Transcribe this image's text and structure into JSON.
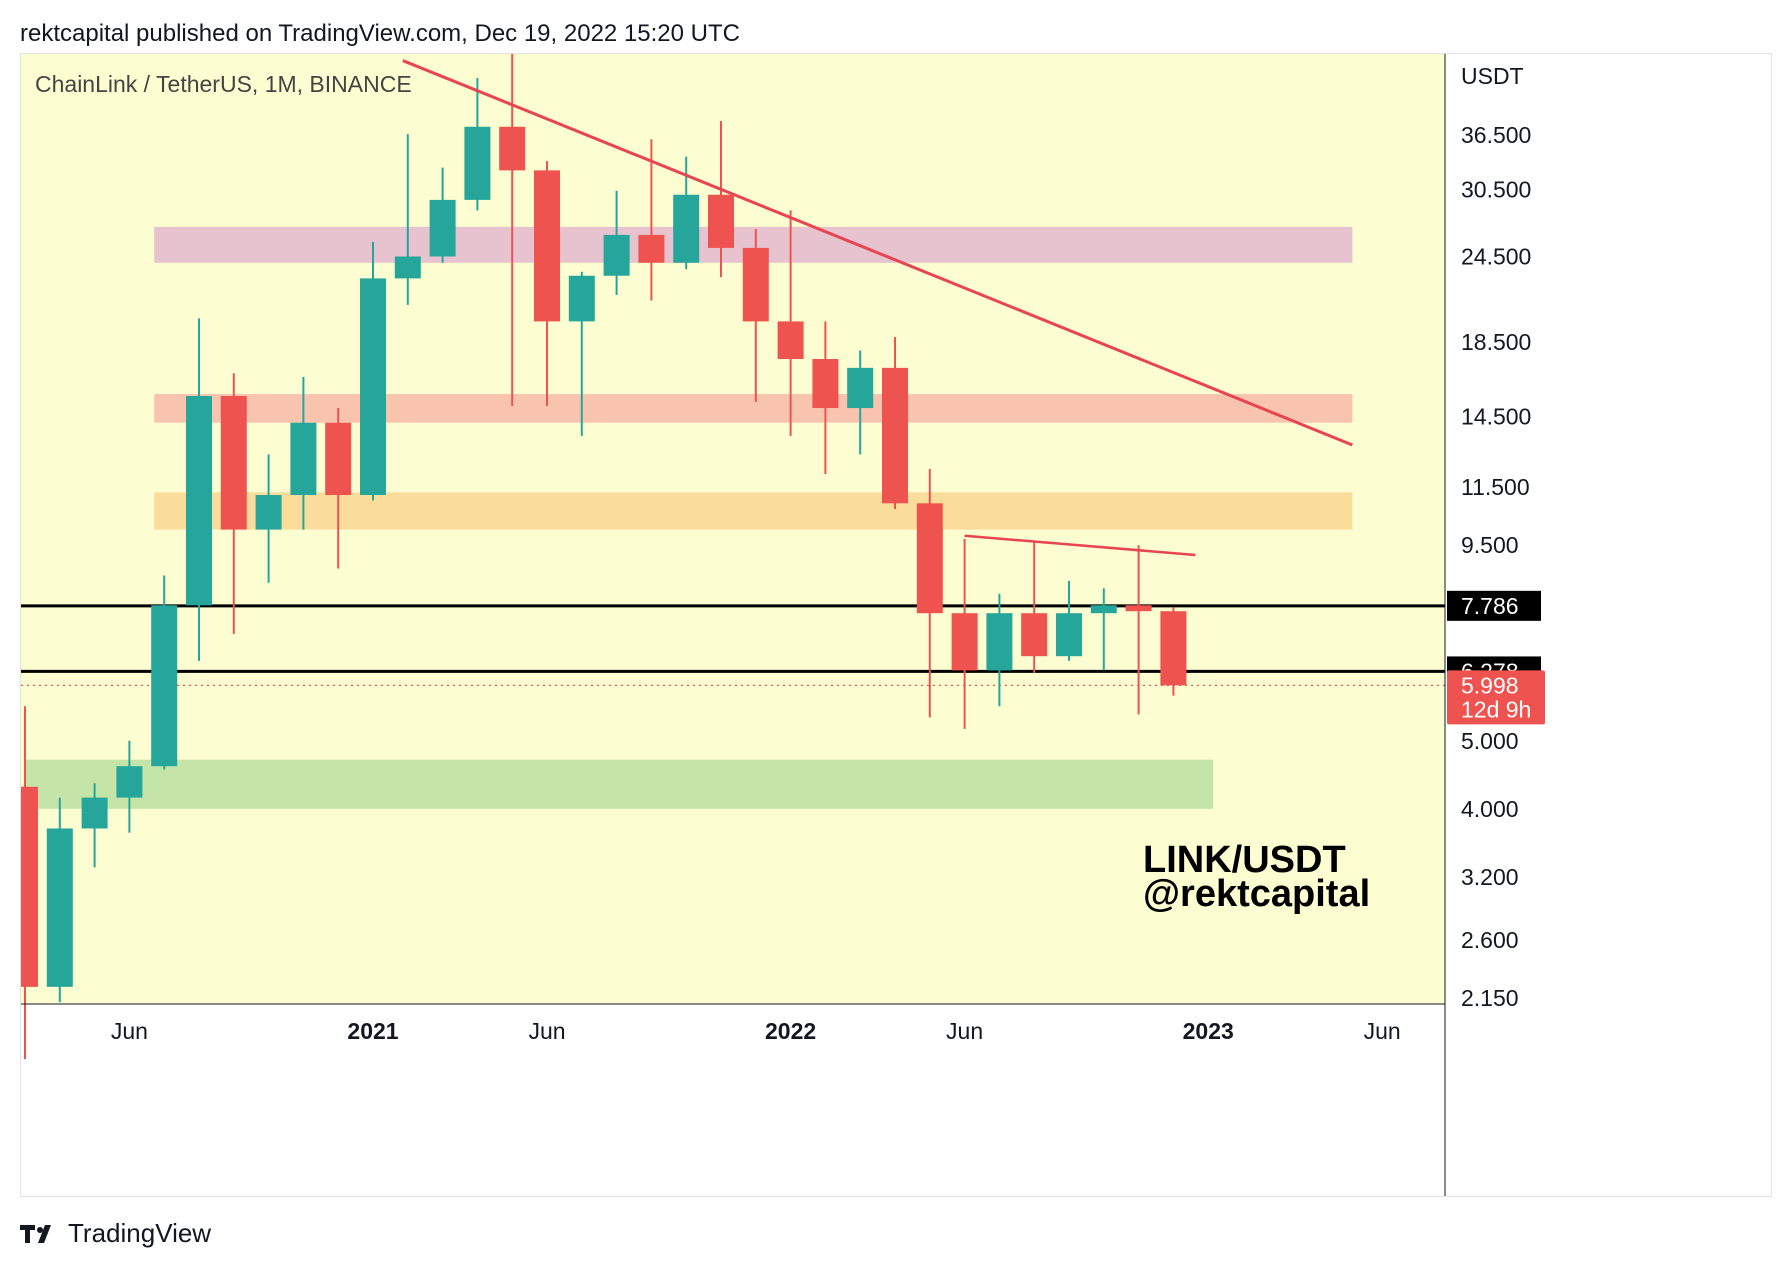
{
  "header": {
    "publish_line": "rektcapital published on TradingView.com, Dec 19, 2022 15:20 UTC"
  },
  "footer": {
    "brand": "TradingView",
    "logo_icon": "tradingview-logo-icon"
  },
  "colors": {
    "plot_bg": "#fdfdd2",
    "up": "#26a69a",
    "down": "#ef5350",
    "trendline": "#e84550",
    "zone_pink": "#e6c3cf",
    "zone_salmon": "#f9c4ae",
    "zone_orange": "#fbdd9b",
    "zone_green": "#c5e4a8",
    "level_line": "#000000",
    "price_dotted": "#ef5350"
  },
  "chart_data": {
    "type": "candlestick",
    "instrument": "ChainLink / TetherUS, 1M, BINANCE",
    "y_unit": "USDT",
    "y_scale": "log",
    "y_ticks": [
      "36.500",
      "30.500",
      "24.500",
      "18.500",
      "14.500",
      "11.500",
      "9.500",
      "5.000",
      "4.000",
      "3.200",
      "2.600",
      "2.150"
    ],
    "x_ticks": [
      {
        "label": "Jun",
        "date": "2020-06",
        "bold": false
      },
      {
        "label": "2021",
        "date": "2021-01",
        "bold": true
      },
      {
        "label": "Jun",
        "date": "2021-06",
        "bold": false
      },
      {
        "label": "2022",
        "date": "2022-01",
        "bold": true
      },
      {
        "label": "Jun",
        "date": "2022-06",
        "bold": false
      },
      {
        "label": "2023",
        "date": "2023-01",
        "bold": true
      },
      {
        "label": "Jun",
        "date": "2023-06",
        "bold": false
      }
    ],
    "candles": [
      {
        "date": "2020-03",
        "open": 4.3,
        "high": 5.6,
        "low": 1.76,
        "close": 2.23
      },
      {
        "date": "2020-04",
        "open": 2.23,
        "high": 4.15,
        "low": 2.12,
        "close": 3.75
      },
      {
        "date": "2020-05",
        "open": 3.75,
        "high": 4.35,
        "low": 3.3,
        "close": 4.15
      },
      {
        "date": "2020-06",
        "open": 4.15,
        "high": 5.0,
        "low": 3.7,
        "close": 4.6
      },
      {
        "date": "2020-07",
        "open": 4.6,
        "high": 8.6,
        "low": 4.55,
        "close": 7.8
      },
      {
        "date": "2020-08",
        "open": 7.8,
        "high": 20.0,
        "low": 6.5,
        "close": 15.5
      },
      {
        "date": "2020-09",
        "open": 15.5,
        "high": 16.7,
        "low": 7.1,
        "close": 10.0
      },
      {
        "date": "2020-10",
        "open": 10.0,
        "high": 12.8,
        "low": 8.4,
        "close": 11.2
      },
      {
        "date": "2020-11",
        "open": 11.2,
        "high": 16.5,
        "low": 10.0,
        "close": 14.2
      },
      {
        "date": "2020-12",
        "open": 14.2,
        "high": 14.9,
        "low": 8.8,
        "close": 11.2
      },
      {
        "date": "2021-01",
        "open": 11.2,
        "high": 25.7,
        "low": 11.0,
        "close": 22.8
      },
      {
        "date": "2021-02",
        "open": 22.8,
        "high": 36.6,
        "low": 20.9,
        "close": 24.5
      },
      {
        "date": "2021-03",
        "open": 24.5,
        "high": 32.8,
        "low": 24.0,
        "close": 29.5
      },
      {
        "date": "2021-04",
        "open": 29.5,
        "high": 44.0,
        "low": 28.5,
        "close": 37.5
      },
      {
        "date": "2021-05",
        "open": 37.5,
        "high": 52.9,
        "low": 15.0,
        "close": 32.5
      },
      {
        "date": "2021-06",
        "open": 32.5,
        "high": 33.5,
        "low": 15.0,
        "close": 19.8
      },
      {
        "date": "2021-07",
        "open": 19.8,
        "high": 23.3,
        "low": 13.6,
        "close": 23.0
      },
      {
        "date": "2021-08",
        "open": 23.0,
        "high": 30.4,
        "low": 21.6,
        "close": 26.3
      },
      {
        "date": "2021-09",
        "open": 26.3,
        "high": 36.0,
        "low": 21.2,
        "close": 24.0
      },
      {
        "date": "2021-10",
        "open": 24.0,
        "high": 34.0,
        "low": 23.5,
        "close": 30.0
      },
      {
        "date": "2021-11",
        "open": 30.0,
        "high": 38.2,
        "low": 22.9,
        "close": 25.2
      },
      {
        "date": "2021-12",
        "open": 25.2,
        "high": 26.8,
        "low": 15.2,
        "close": 19.8
      },
      {
        "date": "2022-01",
        "open": 19.8,
        "high": 28.5,
        "low": 13.6,
        "close": 17.5
      },
      {
        "date": "2022-02",
        "open": 17.5,
        "high": 19.8,
        "low": 12.0,
        "close": 14.9
      },
      {
        "date": "2022-03",
        "open": 14.9,
        "high": 18.0,
        "low": 12.8,
        "close": 17.0
      },
      {
        "date": "2022-04",
        "open": 17.0,
        "high": 18.8,
        "low": 10.7,
        "close": 10.9
      },
      {
        "date": "2022-05",
        "open": 10.9,
        "high": 12.2,
        "low": 5.4,
        "close": 7.6
      },
      {
        "date": "2022-06",
        "open": 7.6,
        "high": 9.7,
        "low": 5.2,
        "close": 6.3
      },
      {
        "date": "2022-07",
        "open": 6.3,
        "high": 8.1,
        "low": 5.6,
        "close": 7.6
      },
      {
        "date": "2022-08",
        "open": 7.6,
        "high": 9.6,
        "low": 6.25,
        "close": 6.6
      },
      {
        "date": "2022-09",
        "open": 6.6,
        "high": 8.45,
        "low": 6.5,
        "close": 7.6
      },
      {
        "date": "2022-10",
        "open": 7.6,
        "high": 8.25,
        "low": 6.3,
        "close": 7.8
      },
      {
        "date": "2022-11",
        "open": 7.8,
        "high": 9.5,
        "low": 5.45,
        "close": 7.65
      },
      {
        "date": "2022-12",
        "open": 7.65,
        "high": 7.75,
        "low": 5.8,
        "close": 5.998
      }
    ],
    "zones": [
      {
        "name": "pink",
        "from": "2020-07",
        "to": "2023-05",
        "low": 24.0,
        "high": 27.0
      },
      {
        "name": "salmon",
        "from": "2020-07",
        "to": "2023-05",
        "low": 14.2,
        "high": 15.6
      },
      {
        "name": "orange",
        "from": "2020-07",
        "to": "2023-05",
        "low": 10.0,
        "high": 11.3
      },
      {
        "name": "green",
        "from": "2020-03",
        "to": "2023-01",
        "low": 4.0,
        "high": 4.7
      }
    ],
    "trendlines": [
      {
        "name": "macro-downtrend",
        "from": {
          "date": "2021-02",
          "price": 46.6
        },
        "to": {
          "date": "2023-05",
          "price": 13.2
        }
      },
      {
        "name": "lower-highs",
        "from": {
          "date": "2022-06",
          "price": 9.8
        },
        "to": {
          "date": "2022-12",
          "price": 9.2
        }
      }
    ],
    "horizontal_levels": [
      {
        "value": 7.786,
        "label": "7.786"
      },
      {
        "value": 6.278,
        "label": "6.278"
      }
    ],
    "current_price": {
      "value": 5.998,
      "label": "5.998",
      "countdown": "12d 9h"
    },
    "watermark": {
      "line1": "LINK/USDT",
      "line2": "@rektcapital"
    }
  }
}
